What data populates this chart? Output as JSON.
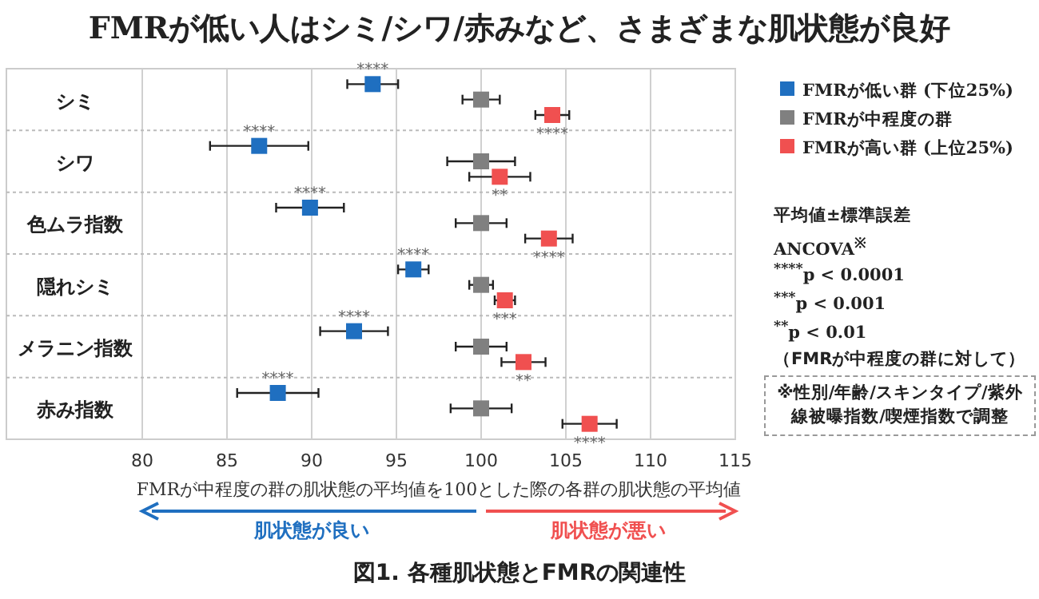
{
  "chart_data": {
    "type": "scatter",
    "orientation": "horizontal",
    "title": "FMRが低い人はシミ/シワ/赤みなど、さまざまな肌状態が良好",
    "xlabel": "FMRが中程度の群の肌状態の平均値を100とした際の各群の肌状態の平均値",
    "categories": [
      "シミ",
      "シワ",
      "色ムラ指数",
      "隠れシミ",
      "メラニン指数",
      "赤み指数"
    ],
    "xlim": [
      80,
      115
    ],
    "xticks": [
      80,
      85,
      90,
      95,
      100,
      105,
      110,
      115
    ],
    "grid": "x",
    "legend": "right",
    "marker": "square",
    "series": [
      {
        "name": "FMRが低い群 (下位25%)",
        "color": "#1f6fc0",
        "values": [
          93.6,
          86.9,
          89.9,
          96.0,
          92.5,
          88.0
        ],
        "errors": [
          1.5,
          2.9,
          2.0,
          0.9,
          2.0,
          2.4
        ],
        "value_labels": [
          "****",
          "****",
          "****",
          "****",
          "****",
          "****"
        ]
      },
      {
        "name": "FMRが中程度の群",
        "color": "#808080",
        "values": [
          100,
          100,
          100,
          100,
          100,
          100
        ],
        "errors": [
          1.1,
          2.0,
          1.5,
          0.7,
          1.5,
          1.8
        ]
      },
      {
        "name": "FMRが高い群 (上位25%)",
        "color": "#f05050",
        "values": [
          104.2,
          101.1,
          104.0,
          101.4,
          102.5,
          106.4
        ],
        "errors": [
          1.0,
          1.8,
          1.4,
          0.6,
          1.3,
          1.6
        ],
        "value_labels": [
          "****",
          "**",
          "****",
          "***",
          "**",
          "****"
        ]
      }
    ],
    "annotations": [
      "平均値±標準誤差",
      "ANCOVA$^{※}$",
      "$^{****}$p < 0.0001",
      "$^{***}$p < 0.001",
      "$^{**}$p < 0.01",
      "（FMRが中程度の群に対して）",
      "※性別/年齢/スキンタイプ/紫外線被曝指数/喫煙指数で調整",
      "肌状態が良い",
      "肌状態が悪い",
      "図1. 各種肌状態とFMRの関連性"
    ]
  }
}
